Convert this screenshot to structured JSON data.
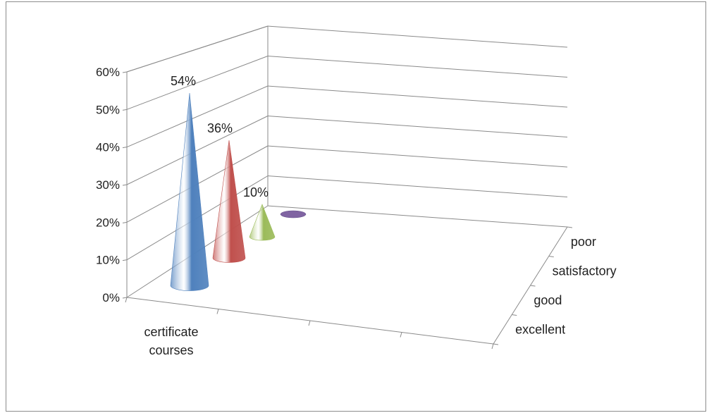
{
  "chart_data": {
    "type": "bar",
    "shape": "3d-cone",
    "categories": [
      "certificate courses"
    ],
    "series": [
      {
        "name": "excellent",
        "values": [
          54
        ],
        "label": "54%",
        "color": "#4f81bd"
      },
      {
        "name": "good",
        "values": [
          36
        ],
        "label": "36%",
        "color": "#c0504d"
      },
      {
        "name": "satisfactory",
        "values": [
          10
        ],
        "label": "10%",
        "color": "#9bbb59"
      },
      {
        "name": "poor",
        "values": [
          0
        ],
        "label": "",
        "color": "#8064a2"
      }
    ],
    "y_ticks": [
      "0%",
      "10%",
      "20%",
      "30%",
      "40%",
      "50%",
      "60%"
    ],
    "ylim": [
      0,
      60
    ],
    "x_label_lines": [
      "certificate",
      "courses"
    ],
    "depth_labels": [
      "excellent",
      "good",
      "satisfactory",
      "poor"
    ],
    "grid": true,
    "title": "",
    "xlabel": "",
    "ylabel": ""
  }
}
